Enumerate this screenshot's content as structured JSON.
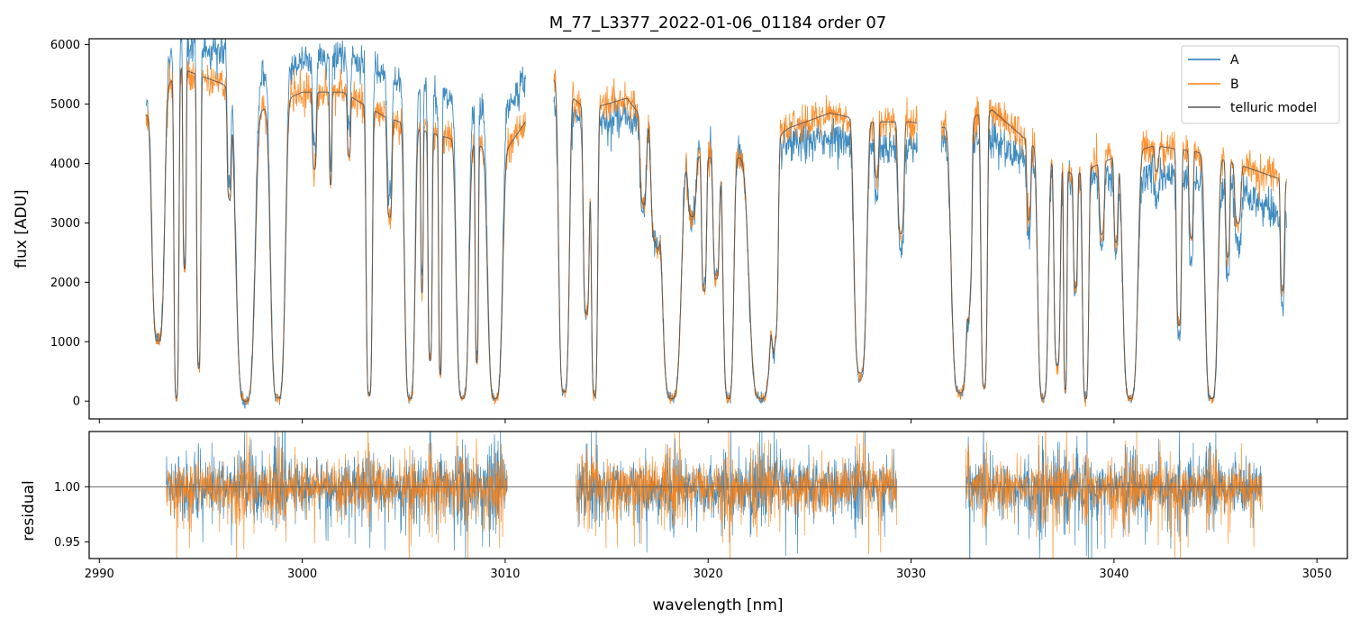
{
  "chart_data": [
    {
      "type": "line",
      "title": "M_77_L3377_2022-01-06_01184  order 07",
      "xlabel": "",
      "ylabel": "flux [ADU]",
      "xlim": [
        2989.5,
        3051.5
      ],
      "ylim": [
        -300,
        6100
      ],
      "yticks": [
        0,
        1000,
        2000,
        3000,
        4000,
        5000,
        6000
      ],
      "xticks": [
        2990,
        3000,
        3010,
        3020,
        3030,
        3040,
        3050
      ],
      "x_tick_labels_visible": false,
      "legend": {
        "placement": "upper right",
        "entries": [
          "A",
          "B",
          "telluric model"
        ]
      },
      "segments": [
        [
          2992.3,
          3011.0
        ],
        [
          3012.4,
          3030.3
        ],
        [
          3031.5,
          3048.5
        ]
      ],
      "continuum": {
        "x": [
          2992.3,
          2994,
          2996,
          2998,
          3000,
          3002,
          3004,
          3006,
          3008,
          3010,
          3011,
          3012.4,
          3014,
          3016,
          3018,
          3020,
          3022,
          3024,
          3026,
          3028,
          3030,
          3031.5,
          3034,
          3036,
          3038,
          3040,
          3042,
          3044,
          3046,
          3048.5
        ],
        "A": [
          5000,
          6000,
          5900,
          5500,
          5700,
          5850,
          5450,
          5200,
          5000,
          4900,
          5400,
          5000,
          4700,
          4800,
          4300,
          4200,
          4100,
          4300,
          4450,
          4300,
          4300,
          4400,
          4400,
          4000,
          3600,
          3800,
          3800,
          3700,
          3500,
          3100
        ],
        "B": [
          4800,
          5600,
          5350,
          4900,
          5200,
          5200,
          4800,
          4550,
          4350,
          4200,
          4700,
          5400,
          4900,
          5100,
          4200,
          4100,
          4100,
          4600,
          4850,
          4700,
          4700,
          4600,
          4900,
          4300,
          3800,
          4100,
          4300,
          4200,
          4000,
          3700
        ]
      },
      "absorption_lines": [
        [
          2992.9,
          0.3,
          0.8
        ],
        [
          2993.8,
          0.12,
          0.99
        ],
        [
          2994.2,
          0.08,
          0.6
        ],
        [
          2994.9,
          0.1,
          0.9
        ],
        [
          2996.4,
          0.1,
          0.35
        ],
        [
          2997.2,
          0.45,
          1.0
        ],
        [
          2998.8,
          0.35,
          0.99
        ],
        [
          3000.6,
          0.1,
          0.25
        ],
        [
          3001.4,
          0.06,
          0.3
        ],
        [
          3002.3,
          0.08,
          0.2
        ],
        [
          3003.3,
          0.15,
          0.98
        ],
        [
          3004.3,
          0.12,
          0.35
        ],
        [
          3005.3,
          0.25,
          0.99
        ],
        [
          3005.9,
          0.06,
          0.6
        ],
        [
          3006.3,
          0.1,
          0.85
        ],
        [
          3006.8,
          0.08,
          0.9
        ],
        [
          3007.9,
          0.3,
          0.99
        ],
        [
          3008.6,
          0.08,
          0.85
        ],
        [
          3009.5,
          0.35,
          0.99
        ],
        [
          3012.9,
          0.25,
          0.97
        ],
        [
          3014.0,
          0.15,
          0.7
        ],
        [
          3014.4,
          0.15,
          0.98
        ],
        [
          3016.8,
          0.15,
          0.3
        ],
        [
          3017.4,
          0.2,
          0.4
        ],
        [
          3018.2,
          0.45,
          0.99
        ],
        [
          3019.2,
          0.2,
          0.25
        ],
        [
          3019.8,
          0.12,
          0.55
        ],
        [
          3020.4,
          0.15,
          0.5
        ],
        [
          3021.0,
          0.25,
          0.99
        ],
        [
          3022.6,
          0.55,
          0.99
        ],
        [
          3023.3,
          0.15,
          0.7
        ],
        [
          3027.5,
          0.3,
          0.9
        ],
        [
          3028.3,
          0.1,
          0.2
        ],
        [
          3029.5,
          0.15,
          0.4
        ],
        [
          3032.4,
          0.4,
          0.97
        ],
        [
          3032.9,
          0.1,
          0.5
        ],
        [
          3033.6,
          0.15,
          0.95
        ],
        [
          3035.8,
          0.1,
          0.3
        ],
        [
          3036.5,
          0.25,
          0.99
        ],
        [
          3037.2,
          0.15,
          0.85
        ],
        [
          3037.6,
          0.08,
          0.95
        ],
        [
          3038.1,
          0.1,
          0.5
        ],
        [
          3038.6,
          0.15,
          0.99
        ],
        [
          3039.4,
          0.12,
          0.3
        ],
        [
          3040.1,
          0.1,
          0.35
        ],
        [
          3040.8,
          0.35,
          0.99
        ],
        [
          3042.1,
          0.1,
          0.1
        ],
        [
          3043.2,
          0.12,
          0.7
        ],
        [
          3043.8,
          0.1,
          0.35
        ],
        [
          3044.8,
          0.3,
          0.99
        ],
        [
          3045.6,
          0.1,
          0.4
        ],
        [
          3046.1,
          0.15,
          0.25
        ],
        [
          3048.3,
          0.1,
          0.5
        ]
      ],
      "series": [
        {
          "name": "A",
          "color": "#1f77b4",
          "noise": 150
        },
        {
          "name": "B",
          "color": "#ff7f0e",
          "noise": 150
        },
        {
          "name": "telluric model",
          "color": "#555555",
          "noise": 0
        }
      ]
    },
    {
      "type": "line",
      "title": "",
      "xlabel": "wavelength [nm]",
      "ylabel": "residual",
      "xlim": [
        2989.5,
        3051.5
      ],
      "ylim": [
        0.935,
        1.05
      ],
      "yticks": [
        0.95,
        1.0
      ],
      "ytick_labels": [
        "0.95",
        "1.00"
      ],
      "xticks": [
        2990,
        3000,
        3010,
        3020,
        3030,
        3040,
        3050
      ],
      "xtick_labels": [
        "2990",
        "3000",
        "3010",
        "3020",
        "3030",
        "3040",
        "3050"
      ],
      "reference_line": 1.0,
      "segments": [
        [
          2993.3,
          3010.1
        ],
        [
          3013.5,
          3029.3
        ],
        [
          3032.7,
          3047.3
        ]
      ],
      "series": [
        {
          "name": "A",
          "color": "#1f77b4",
          "center": 1.0,
          "spread": 0.022
        },
        {
          "name": "B",
          "color": "#ff7f0e",
          "center": 1.0,
          "spread": 0.02
        }
      ]
    }
  ]
}
